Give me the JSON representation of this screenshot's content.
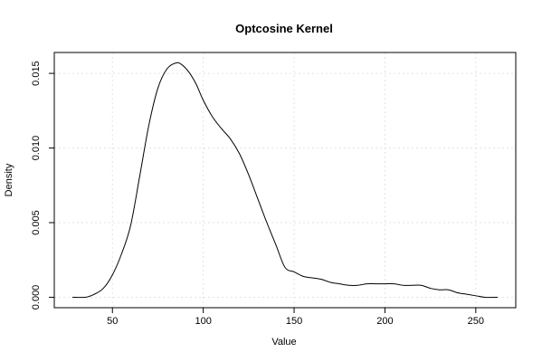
{
  "chart_data": {
    "type": "line",
    "title": "Optcosine Kernel",
    "xlabel": "Value",
    "ylabel": "Density",
    "xlim": [
      18,
      272
    ],
    "ylim": [
      -0.0007,
      0.0164
    ],
    "xticks": [
      50,
      100,
      150,
      200,
      250
    ],
    "yticks": [
      0.0,
      0.005,
      0.01,
      0.015
    ],
    "xtick_labels": [
      "50",
      "100",
      "150",
      "200",
      "250"
    ],
    "ytick_labels": [
      "0.000",
      "0.005",
      "0.010",
      "0.015"
    ],
    "grid": true,
    "series": [
      {
        "color": "#000000",
        "x": [
          28,
          35,
          40,
          45,
          50,
          55,
          60,
          65,
          70,
          75,
          80,
          85,
          88,
          92,
          96,
          100,
          105,
          110,
          115,
          120,
          125,
          130,
          135,
          140,
          145,
          150,
          155,
          160,
          165,
          170,
          175,
          180,
          185,
          190,
          195,
          200,
          205,
          210,
          215,
          220,
          225,
          230,
          235,
          240,
          245,
          250,
          255,
          262
        ],
        "y": [
          0.0,
          0.0,
          0.0002,
          0.0006,
          0.0015,
          0.0029,
          0.0048,
          0.0081,
          0.0115,
          0.014,
          0.0153,
          0.0157,
          0.0156,
          0.0151,
          0.0143,
          0.0132,
          0.0121,
          0.0113,
          0.0106,
          0.0096,
          0.0082,
          0.0066,
          0.005,
          0.0035,
          0.002,
          0.0017,
          0.0014,
          0.0013,
          0.0012,
          0.001,
          0.0009,
          0.0008,
          0.0008,
          0.0009,
          0.0009,
          0.0009,
          0.0009,
          0.0008,
          0.0008,
          0.0008,
          0.0006,
          0.0005,
          0.0005,
          0.0003,
          0.0002,
          0.0001,
          0.0,
          0.0
        ]
      }
    ]
  }
}
